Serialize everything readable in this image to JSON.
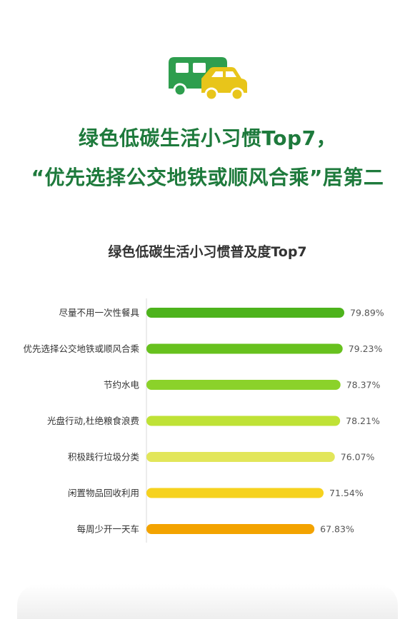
{
  "header": {
    "headline_line1": "绿色低碳生活小习惯Top7，",
    "headline_line2": "“优先选择公交地铁或顺风合乘”居第二",
    "logo_icon": "rv-and-car-icon"
  },
  "colors": {
    "headline": "#1e7a3c",
    "logo_rv": "#2e9e4e",
    "logo_car": "#e8c51a"
  },
  "chart_data": {
    "type": "bar",
    "orientation": "horizontal",
    "title": "绿色低碳生活小习惯普及度Top7",
    "categories": [
      "尽量不用一次性餐具",
      "优先选择公交地铁或顺风合乘",
      "节约水电",
      "光盘行动,杜绝粮食浪费",
      "积极践行垃圾分类",
      "闲置物品回收利用",
      "每周少开一天车"
    ],
    "values": [
      79.89,
      79.23,
      78.37,
      78.21,
      76.07,
      71.54,
      67.83
    ],
    "value_labels": [
      "79.89%",
      "79.23%",
      "78.37%",
      "78.21%",
      "76.07%",
      "71.54%",
      "67.83%"
    ],
    "bar_colors": [
      "#4db31c",
      "#67c11e",
      "#8bd22a",
      "#bfe236",
      "#e2e65a",
      "#f6d21e",
      "#f3a300"
    ],
    "unit": "%",
    "grid": false,
    "legend": "none"
  }
}
